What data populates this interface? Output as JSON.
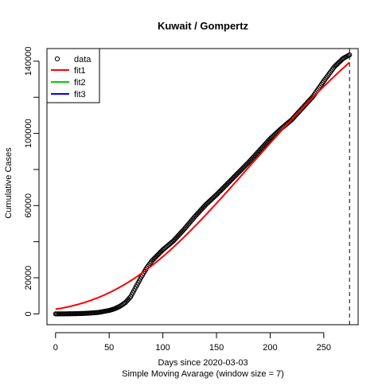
{
  "chart_data": {
    "type": "scatter",
    "title": "Kuwait / Gompertz",
    "xlabel": "Days since 2020-03-03",
    "xsublabel": "Simple Moving Avarage (window size = 7)",
    "ylabel": "Cumulative Cases",
    "xlim": [
      -8,
      282
    ],
    "ylim": [
      -6000,
      147000
    ],
    "xticks": [
      0,
      50,
      100,
      150,
      200,
      250
    ],
    "yticks": [
      0,
      20000,
      40000,
      60000,
      80000,
      100000,
      120000,
      140000
    ],
    "ytick_labels": [
      "0",
      "20000",
      "60000",
      "100000",
      "140000"
    ],
    "grid": false,
    "legend_position": "top-left",
    "vline_x": 274,
    "data_key_points": {
      "x": [
        0,
        10,
        20,
        30,
        40,
        50,
        55,
        60,
        65,
        70,
        75,
        80,
        85,
        90,
        100,
        110,
        120,
        130,
        140,
        150,
        160,
        170,
        180,
        190,
        200,
        210,
        220,
        230,
        240,
        250,
        260,
        268,
        274
      ],
      "y": [
        0,
        30,
        120,
        350,
        800,
        1900,
        2800,
        4200,
        6200,
        9500,
        15000,
        20500,
        25500,
        29500,
        35500,
        40500,
        47000,
        54000,
        60500,
        66000,
        72000,
        78000,
        84000,
        90500,
        97000,
        102500,
        107500,
        114000,
        120500,
        129000,
        137000,
        141500,
        143500
      ]
    },
    "series": [
      {
        "name": "data",
        "color": "#000000",
        "marker": "open-circle"
      },
      {
        "name": "fit1",
        "color": "#ff0000",
        "model": "gompertz",
        "params": {
          "a": 220000,
          "b": 4.44,
          "c": 0.0083
        },
        "range": [
          0,
          274
        ]
      },
      {
        "name": "fit2",
        "color": "#00cd00"
      },
      {
        "name": "fit3",
        "color": "#0000ff"
      }
    ]
  }
}
